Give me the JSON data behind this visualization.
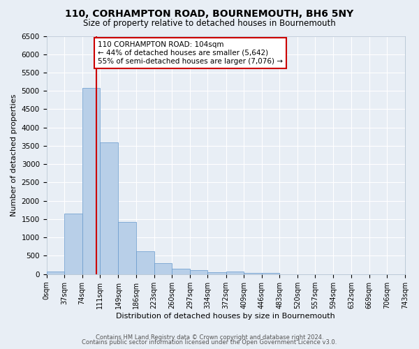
{
  "title1": "110, CORHAMPTON ROAD, BOURNEMOUTH, BH6 5NY",
  "title2": "Size of property relative to detached houses in Bournemouth",
  "xlabel": "Distribution of detached houses by size in Bournemouth",
  "ylabel": "Number of detached properties",
  "bar_color": "#b8cfe8",
  "bar_edge_color": "#6699cc",
  "background_color": "#e8eef5",
  "grid_color": "#ffffff",
  "bin_edges": [
    0,
    37,
    74,
    111,
    149,
    186,
    223,
    260,
    297,
    334,
    372,
    409,
    446,
    483,
    520,
    557,
    594,
    632,
    669,
    706,
    743
  ],
  "bar_heights": [
    75,
    1650,
    5080,
    3600,
    1420,
    625,
    305,
    155,
    100,
    60,
    65,
    40,
    35,
    0,
    0,
    0,
    0,
    0,
    0,
    0
  ],
  "property_sqm": 104,
  "annotation_line1": "110 CORHAMPTON ROAD: 104sqm",
  "annotation_line2": "← 44% of detached houses are smaller (5,642)",
  "annotation_line3": "55% of semi-detached houses are larger (7,076) →",
  "annotation_box_color": "#ffffff",
  "annotation_border_color": "#cc0000",
  "vline_color": "#cc0000",
  "ylim": [
    0,
    6500
  ],
  "yticks": [
    0,
    500,
    1000,
    1500,
    2000,
    2500,
    3000,
    3500,
    4000,
    4500,
    5000,
    5500,
    6000,
    6500
  ],
  "footer_line1": "Contains HM Land Registry data © Crown copyright and database right 2024.",
  "footer_line2": "Contains public sector information licensed under the Open Government Licence v3.0."
}
